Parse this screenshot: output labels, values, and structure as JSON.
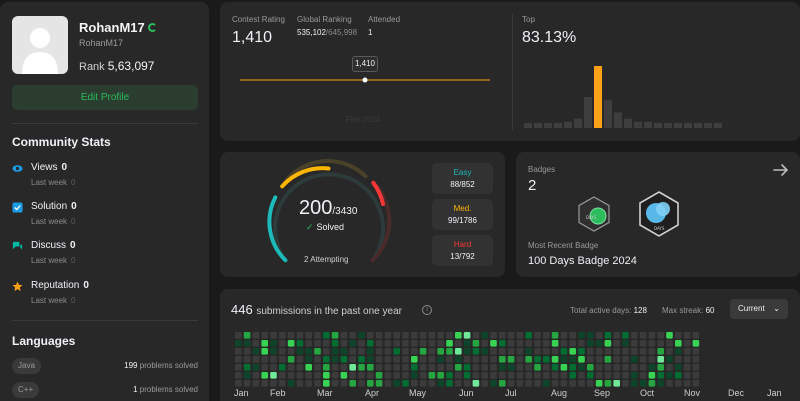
{
  "profile": {
    "username": "RohanM17",
    "login": "RohanM17",
    "rank_label": "Rank",
    "rank_value": "5,63,097",
    "edit_label": "Edit Profile"
  },
  "community": {
    "title": "Community Stats",
    "items": [
      {
        "label": "Views",
        "value": "0",
        "sub": "Last week",
        "sub_value": "0",
        "icon": "eye-icon",
        "color": "#1a9be6"
      },
      {
        "label": "Solution",
        "value": "0",
        "sub": "Last week",
        "sub_value": "0",
        "icon": "checkbox-icon",
        "color": "#1a9be6"
      },
      {
        "label": "Discuss",
        "value": "0",
        "sub": "Last week",
        "sub_value": "0",
        "icon": "chat-icon",
        "color": "#00b8a3"
      },
      {
        "label": "Reputation",
        "value": "0",
        "sub": "Last week",
        "sub_value": "0",
        "icon": "star-icon",
        "color": "#ffa116"
      }
    ]
  },
  "languages": {
    "title": "Languages",
    "items": [
      {
        "name": "Java",
        "count": "199",
        "suffix": "problems solved"
      },
      {
        "name": "C++",
        "count": "1",
        "suffix": "problems solved"
      }
    ]
  },
  "contest": {
    "rating_label": "Contest Rating",
    "rating_value": "1,410",
    "global_label": "Global Ranking",
    "global_value": "535,102",
    "global_total": "/645,998",
    "attended_label": "Attended",
    "attended_value": "1",
    "tooltip": "1,410",
    "faint_label": "Feb 2024",
    "top_label": "Top",
    "top_value": "83.13%",
    "histogram": [
      1,
      1,
      1,
      1,
      2,
      3,
      10,
      20,
      9,
      5,
      3,
      2,
      2,
      1,
      1,
      1,
      1,
      1,
      1,
      1
    ],
    "highlight_index": 7,
    "accent": "#ffa116",
    "bar_color": "#3e3e3e"
  },
  "solved": {
    "count": "200",
    "total": "/3430",
    "label": "Solved",
    "attempting": "2 Attempting",
    "easy": {
      "name": "Easy",
      "value": "88/852",
      "color": "#1cbaba"
    },
    "medium": {
      "name": "Med.",
      "value": "99/1786",
      "color": "#ffb700"
    },
    "hard": {
      "name": "Hard",
      "value": "13/792",
      "color": "#f63737"
    }
  },
  "badges": {
    "title": "Badges",
    "count": "2",
    "recent_label": "Most Recent Badge",
    "recent_value": "100 Days Badge 2024",
    "badge_text": "DAYS"
  },
  "submissions": {
    "count": "446",
    "title": "submissions in the past one year",
    "active_label": "Total active days:",
    "active_value": "128",
    "streak_label": "Max streak:",
    "streak_value": "60",
    "select_value": "Current",
    "months": [
      "Jan",
      "Feb",
      "Mar",
      "Apr",
      "May",
      "Jun",
      "Jul",
      "Aug",
      "Sep",
      "Oct",
      "Nov",
      "Dec",
      "Jan"
    ]
  }
}
